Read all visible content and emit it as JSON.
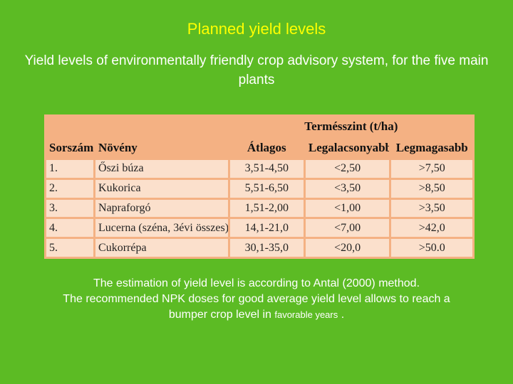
{
  "title": "Planned yield levels",
  "subtitle": "Yield levels of environmentally friendly crop advisory system, for the five main plants",
  "table": {
    "group_header": "Termésszint (t/ha)",
    "columns": {
      "no": "Sorszám",
      "plant": "Növény",
      "avg": "Átlagos",
      "min": "Legalacsonyabb",
      "max": "Legmagasabb"
    },
    "rows": [
      {
        "no": "1.",
        "plant": "Őszi búza",
        "avg": "3,51-4,50",
        "min": "<2,50",
        "max": ">7,50"
      },
      {
        "no": "2.",
        "plant": "Kukorica",
        "avg": "5,51-6,50",
        "min": "<3,50",
        "max": ">8,50"
      },
      {
        "no": "3.",
        "plant": "Napraforgó",
        "avg": "1,51-2,00",
        "min": "<1,00",
        "max": ">3,50"
      },
      {
        "no": "4.",
        "plant": "Lucerna (széna, 3évi összes)",
        "avg": "14,1-21,0",
        "min": "<7,00",
        "max": ">42,0"
      },
      {
        "no": "5.",
        "plant": "Cukorrépa",
        "avg": "30,1-35,0",
        "min": "<20,0",
        "max": ">50.0"
      }
    ]
  },
  "caption": {
    "line1": "The estimation of  yield level  is according to Antal (2000) method.",
    "line2": "The recommended NPK doses for good average yield level allows to reach a",
    "line3_main": "bumper crop level in ",
    "line3_small": "favorable years",
    "line3_end": " ."
  },
  "colors": {
    "background": "#5cbb24",
    "title": "#ffff00",
    "table_header": "#f4b183",
    "table_cell": "#fbe0cc"
  }
}
